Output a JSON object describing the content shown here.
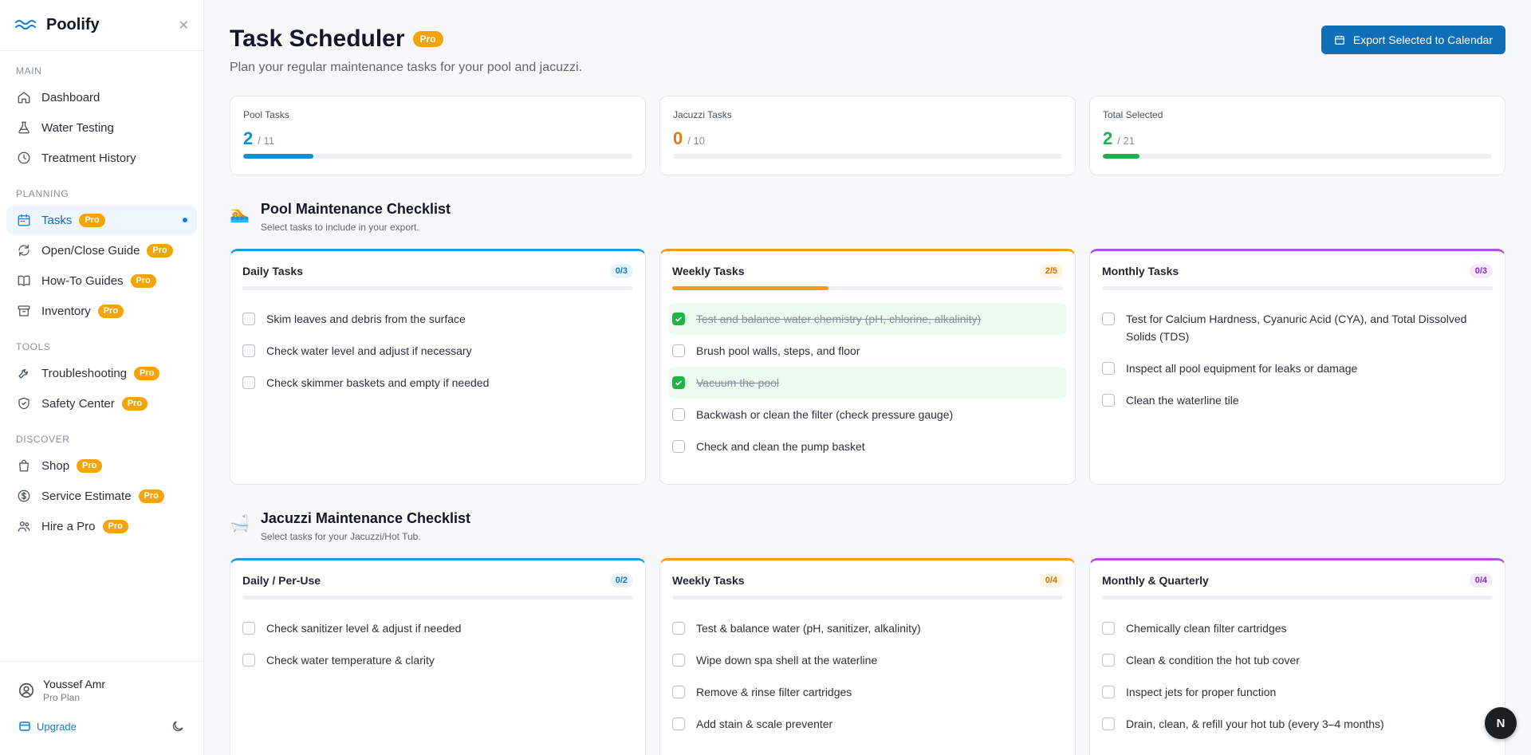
{
  "brand": {
    "name": "Poolify"
  },
  "sidebar": {
    "sections": [
      {
        "label": "MAIN",
        "items": [
          {
            "label": "Dashboard",
            "icon": "home-icon",
            "pro": false
          },
          {
            "label": "Water Testing",
            "icon": "flask-icon",
            "pro": false
          },
          {
            "label": "Treatment History",
            "icon": "clock-icon",
            "pro": false
          }
        ]
      },
      {
        "label": "PLANNING",
        "items": [
          {
            "label": "Tasks",
            "icon": "calendar-icon",
            "pro": true,
            "active": true
          },
          {
            "label": "Open/Close Guide",
            "icon": "refresh-icon",
            "pro": true
          },
          {
            "label": "How-To Guides",
            "icon": "book-icon",
            "pro": true
          },
          {
            "label": "Inventory",
            "icon": "archive-icon",
            "pro": true
          }
        ]
      },
      {
        "label": "TOOLS",
        "items": [
          {
            "label": "Troubleshooting",
            "icon": "wrench-icon",
            "pro": true
          },
          {
            "label": "Safety Center",
            "icon": "shield-icon",
            "pro": true
          }
        ]
      },
      {
        "label": "DISCOVER",
        "items": [
          {
            "label": "Shop",
            "icon": "bag-icon",
            "pro": true
          },
          {
            "label": "Service Estimate",
            "icon": "dollar-icon",
            "pro": true
          },
          {
            "label": "Hire a Pro",
            "icon": "users-icon",
            "pro": true
          }
        ]
      }
    ],
    "pro_label": "Pro",
    "user": {
      "name": "Youssef Amr",
      "plan": "Pro Plan"
    },
    "upgrade_label": "Upgrade"
  },
  "header": {
    "title": "Task Scheduler",
    "title_badge": "Pro",
    "subtitle": "Plan your regular maintenance tasks for your pool and jacuzzi.",
    "export_label": "Export Selected to Calendar"
  },
  "stats": [
    {
      "label": "Pool Tasks",
      "value": "2",
      "total": "/ 11",
      "fraction": 0.18,
      "color": "#0e8fd6"
    },
    {
      "label": "Jacuzzi Tasks",
      "value": "0",
      "total": "/ 10",
      "fraction": 0,
      "color": "#e27b0a"
    },
    {
      "label": "Total Selected",
      "value": "2",
      "total": "/ 21",
      "fraction": 0.095,
      "color": "#1fb14b"
    }
  ],
  "pool": {
    "emoji": "🏊",
    "title": "Pool Maintenance Checklist",
    "desc": "Select tasks to include in your export.",
    "cards": [
      {
        "title": "Daily Tasks",
        "count": "0/3",
        "progress": 0,
        "tasks": [
          {
            "label": "Skim leaves and debris from the surface",
            "done": false
          },
          {
            "label": "Check water level and adjust if necessary",
            "done": false
          },
          {
            "label": "Check skimmer baskets and empty if needed",
            "done": false
          }
        ]
      },
      {
        "title": "Weekly Tasks",
        "count": "2/5",
        "progress": 0.4,
        "tasks": [
          {
            "label": "Test and balance water chemistry (pH, chlorine, alkalinity)",
            "done": true
          },
          {
            "label": "Brush pool walls, steps, and floor",
            "done": false
          },
          {
            "label": "Vacuum the pool",
            "done": true
          },
          {
            "label": "Backwash or clean the filter (check pressure gauge)",
            "done": false
          },
          {
            "label": "Check and clean the pump basket",
            "done": false
          }
        ]
      },
      {
        "title": "Monthly Tasks",
        "count": "0/3",
        "progress": 0,
        "tasks": [
          {
            "label": "Test for Calcium Hardness, Cyanuric Acid (CYA), and Total Dissolved Solids (TDS)",
            "done": false
          },
          {
            "label": "Inspect all pool equipment for leaks or damage",
            "done": false
          },
          {
            "label": "Clean the waterline tile",
            "done": false
          }
        ]
      }
    ]
  },
  "jacuzzi": {
    "emoji": "🛁",
    "title": "Jacuzzi Maintenance Checklist",
    "desc": "Select tasks for your Jacuzzi/Hot Tub.",
    "cards": [
      {
        "title": "Daily / Per-Use",
        "count": "0/2",
        "progress": 0,
        "tasks": [
          {
            "label": "Check sanitizer level & adjust if needed",
            "done": false
          },
          {
            "label": "Check water temperature & clarity",
            "done": false
          }
        ]
      },
      {
        "title": "Weekly Tasks",
        "count": "0/4",
        "progress": 0,
        "tasks": [
          {
            "label": "Test & balance water (pH, sanitizer, alkalinity)",
            "done": false
          },
          {
            "label": "Wipe down spa shell at the waterline",
            "done": false
          },
          {
            "label": "Remove & rinse filter cartridges",
            "done": false
          },
          {
            "label": "Add stain & scale preventer",
            "done": false
          }
        ]
      },
      {
        "title": "Monthly & Quarterly",
        "count": "0/4",
        "progress": 0,
        "tasks": [
          {
            "label": "Chemically clean filter cartridges",
            "done": false
          },
          {
            "label": "Clean & condition the hot tub cover",
            "done": false
          },
          {
            "label": "Inspect jets for proper function",
            "done": false
          },
          {
            "label": "Drain, clean, & refill your hot tub (every 3–4 months)",
            "done": false
          }
        ]
      }
    ]
  },
  "fab_label": "N"
}
